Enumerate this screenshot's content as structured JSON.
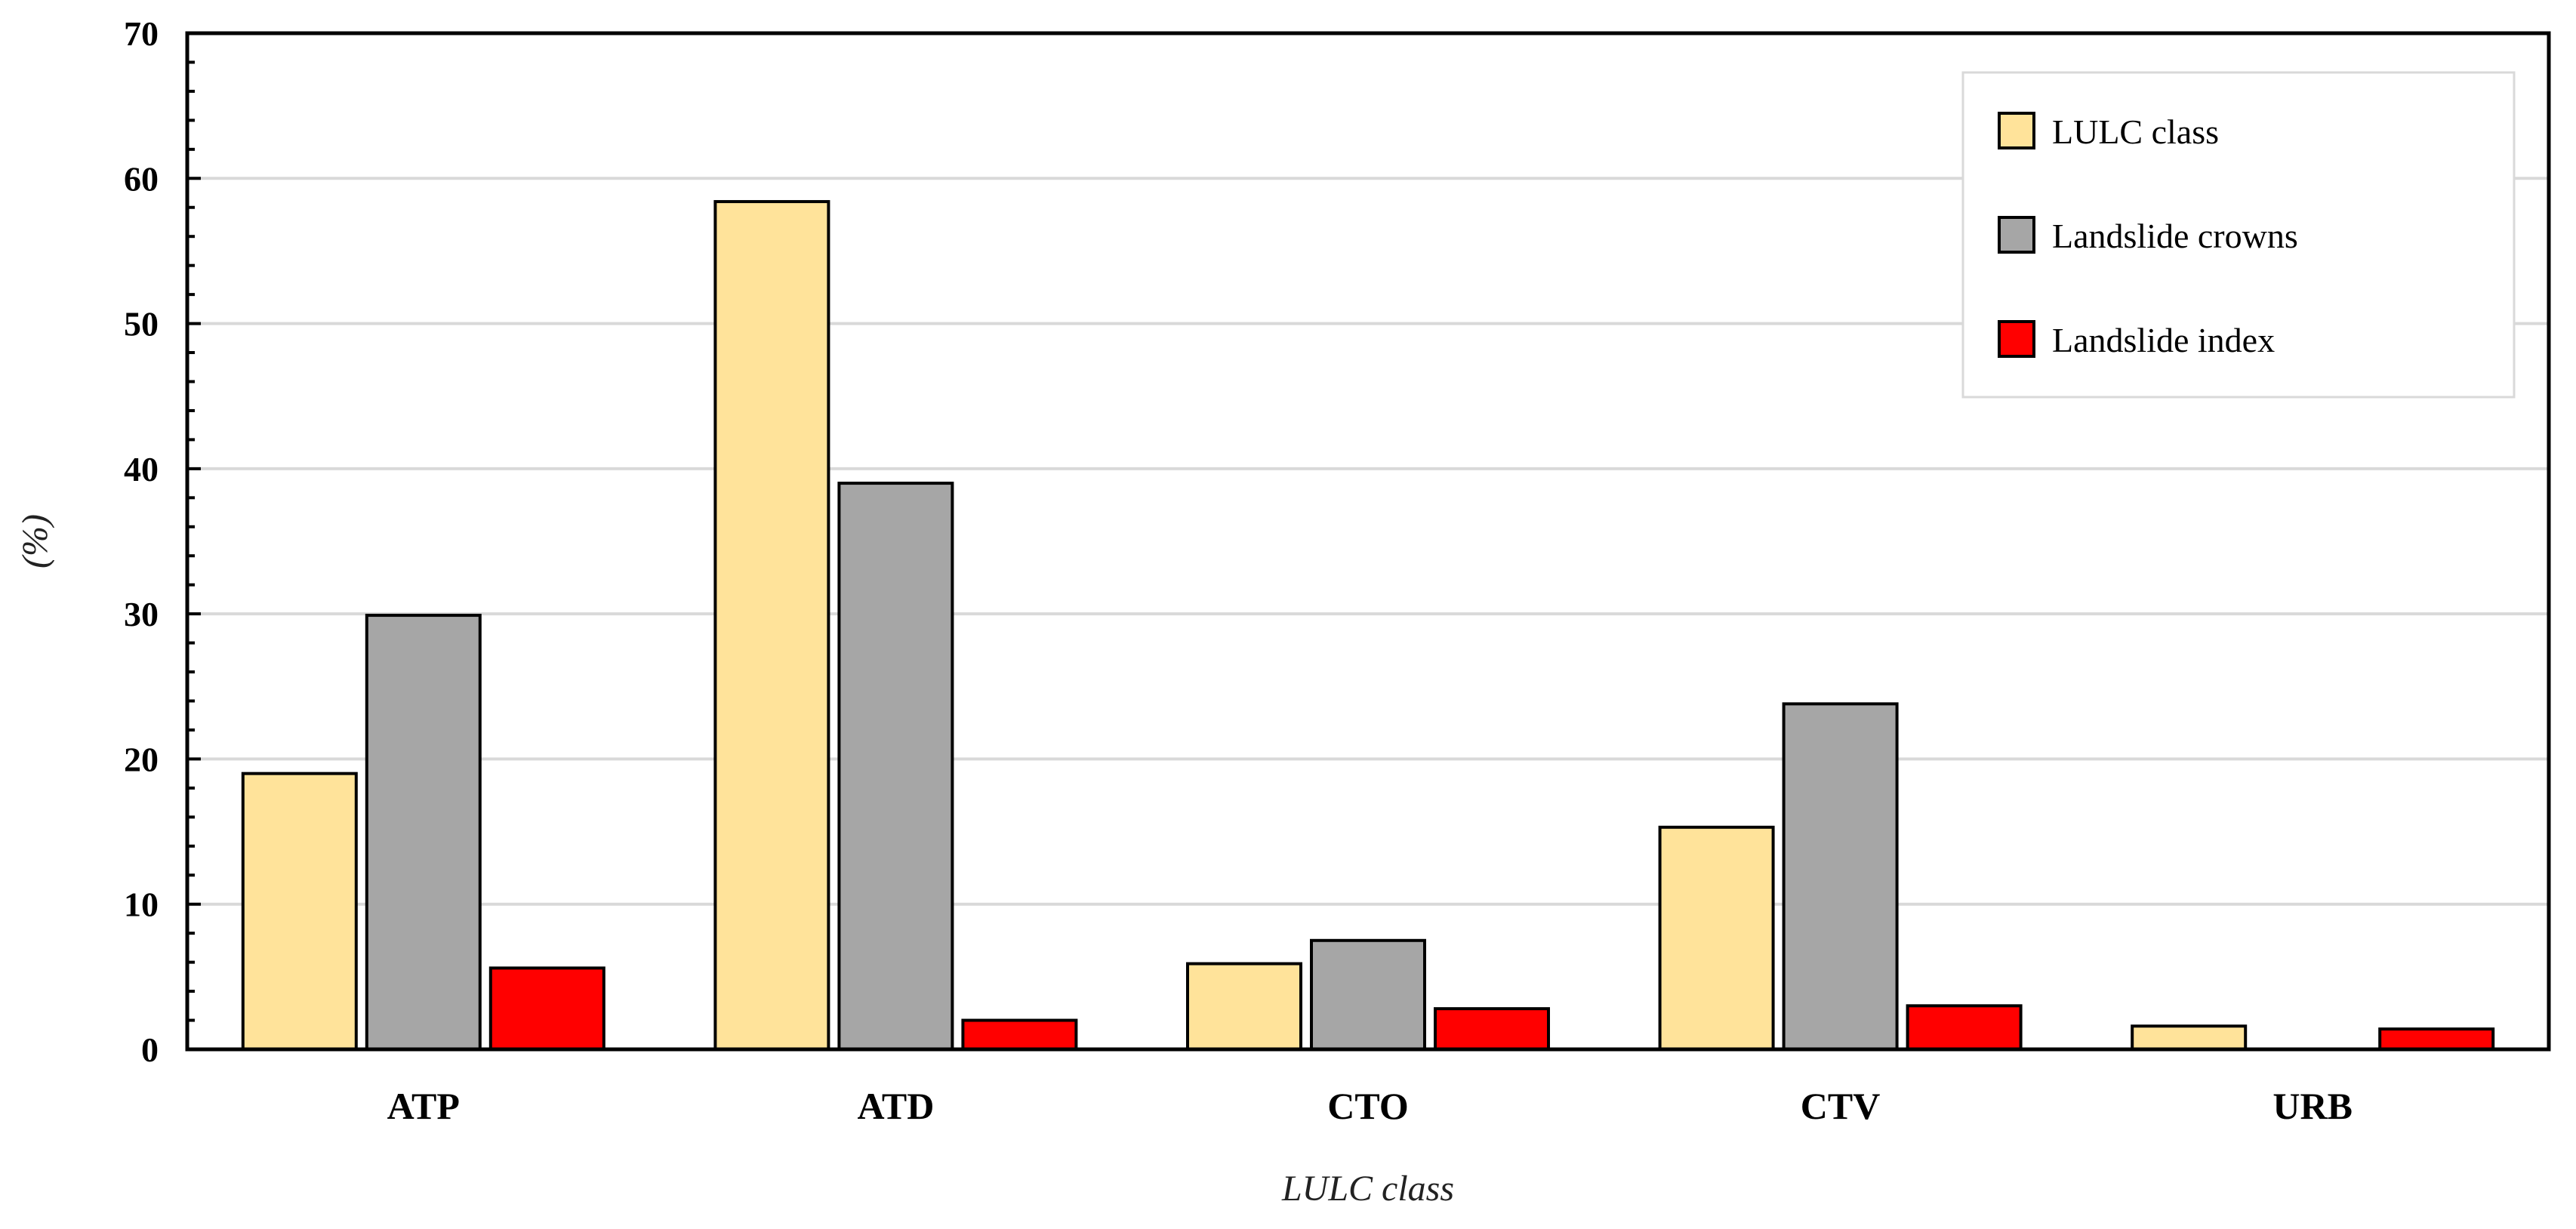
{
  "chart_data": {
    "type": "bar",
    "title": "",
    "xlabel": "LULC class",
    "ylabel": "(%)",
    "ylim": [
      0,
      70
    ],
    "yticks": [
      0,
      10,
      20,
      30,
      40,
      50,
      60,
      70
    ],
    "grid": true,
    "legend_position": "top-right",
    "categories": [
      "ATP",
      "ATD",
      "CTO",
      "CTV",
      "URB"
    ],
    "series": [
      {
        "name": "LULC class",
        "color": "#FFE39A",
        "values": [
          19.0,
          58.4,
          5.9,
          15.3,
          1.6
        ]
      },
      {
        "name": "Landslide crowns",
        "color": "#A6A6A6",
        "values": [
          29.9,
          39.0,
          7.5,
          23.8,
          0.0
        ]
      },
      {
        "name": "Landslide index",
        "color": "#FF0000",
        "values": [
          5.6,
          2.0,
          2.8,
          3.0,
          1.4
        ]
      }
    ]
  }
}
